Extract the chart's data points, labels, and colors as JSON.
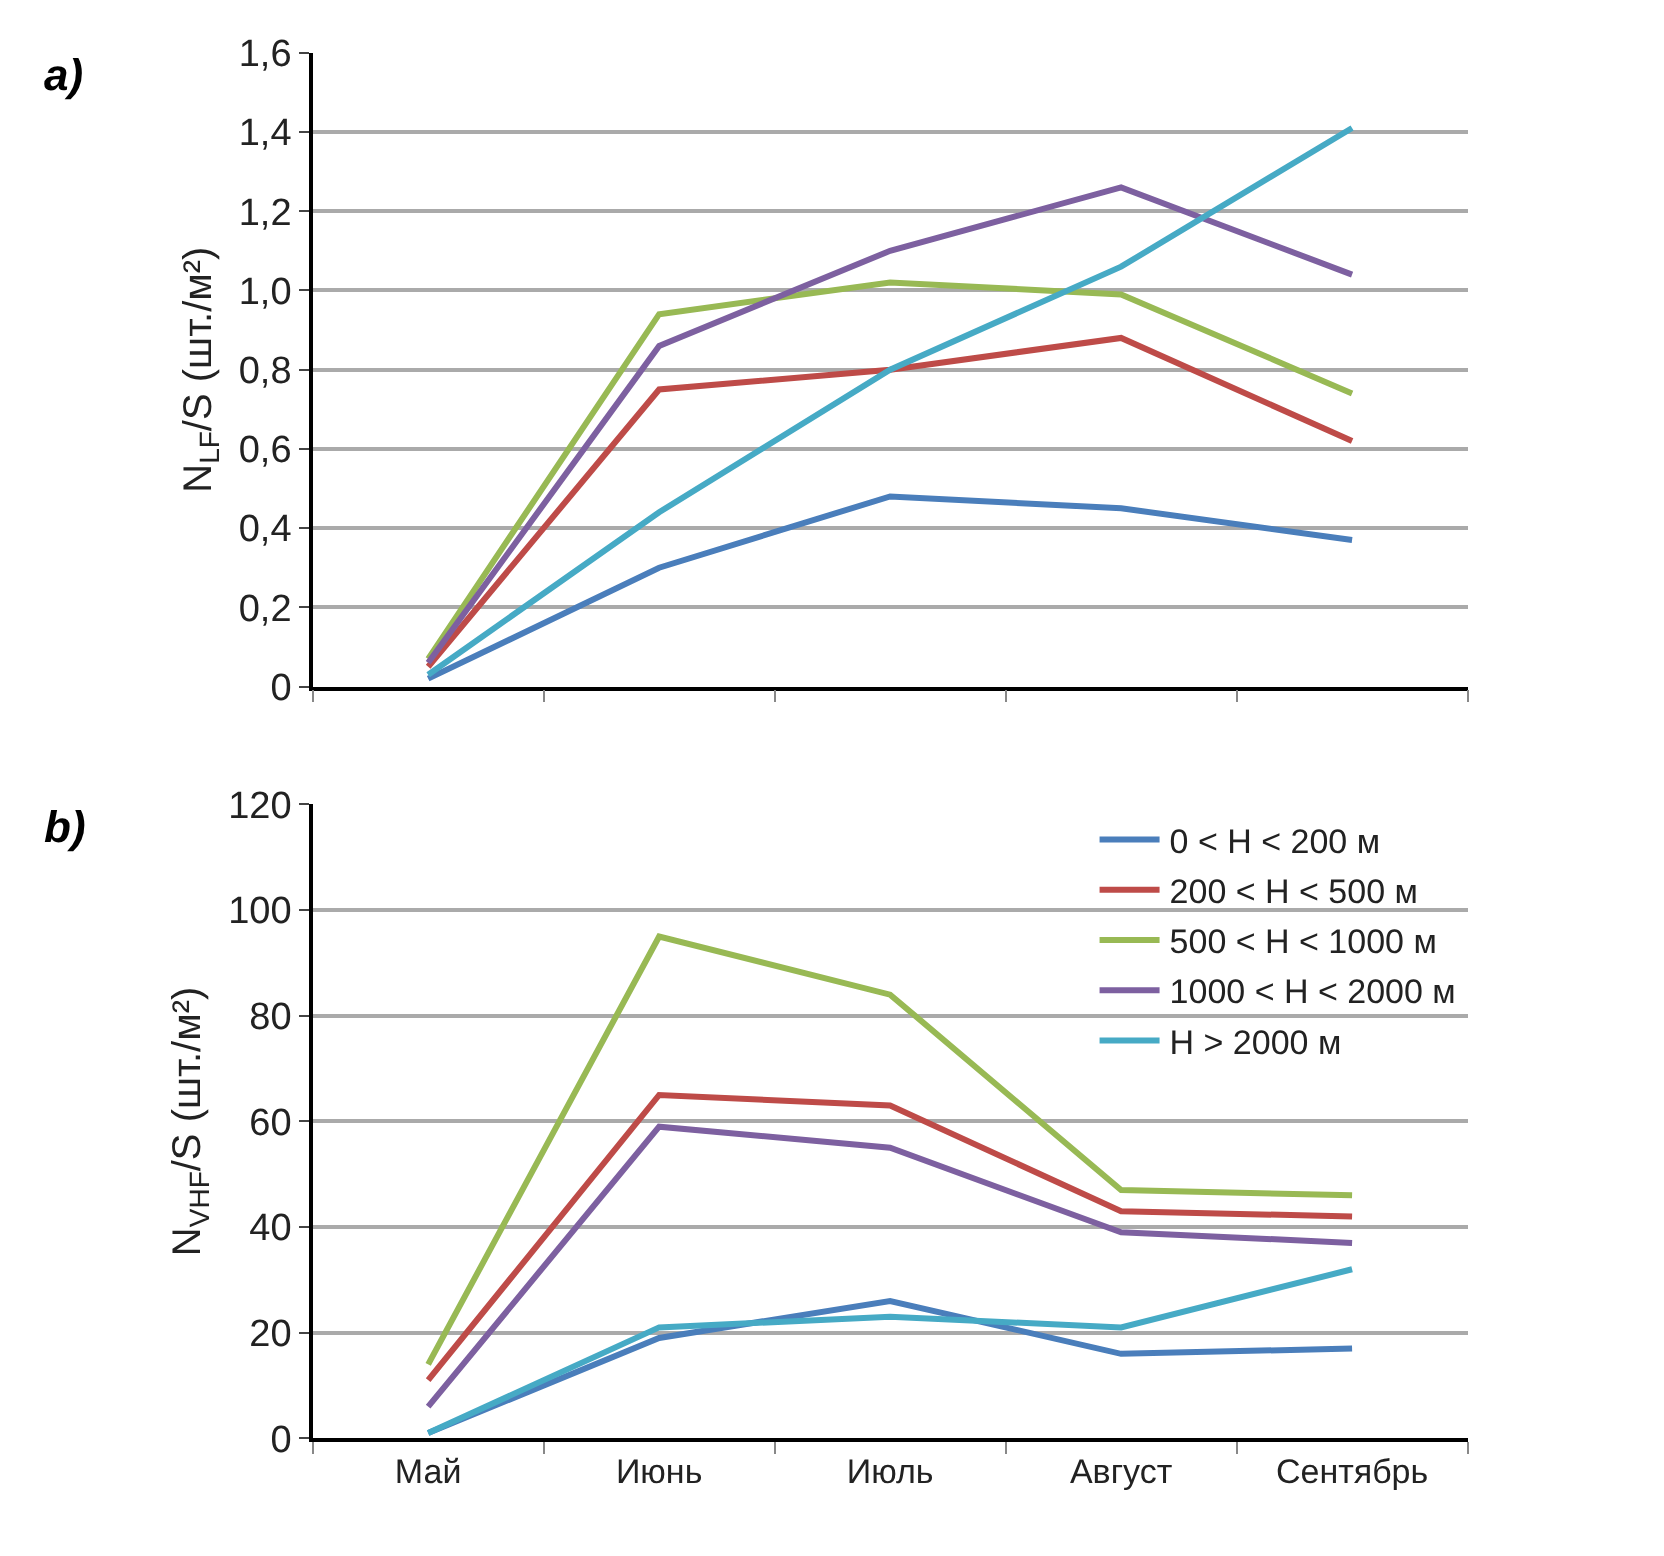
{
  "chart_data": [
    {
      "type": "line",
      "ylabel": "N$_{LF}$/S (шт./м²)",
      "annotations": [
        "a)"
      ],
      "categories": [
        null,
        null,
        null,
        null,
        null
      ],
      "tick_labels": "y",
      "grid": "y",
      "ylim": [
        0,
        1.6
      ],
      "yticks": [
        0,
        {
          "value": 0.2,
          "label": "0,2"
        },
        {
          "value": 0.4,
          "label": "0,4"
        },
        {
          "value": 0.6,
          "label": "0,6"
        },
        {
          "value": 0.8,
          "label": "0,8"
        },
        {
          "value": 1.0,
          "label": "1,0"
        },
        {
          "value": 1.2,
          "label": "1,2"
        },
        {
          "value": 1.4,
          "label": "1,4"
        },
        {
          "value": 1.6,
          "label": "1,6"
        }
      ],
      "series": [
        {
          "color": "#4a7ebb",
          "values": [
            0.02,
            0.3,
            0.48,
            0.45,
            0.37
          ]
        },
        {
          "color": "#be4b48",
          "values": [
            0.05,
            0.75,
            0.8,
            0.88,
            0.62
          ]
        },
        {
          "color": "#98b954",
          "values": [
            0.07,
            0.94,
            1.02,
            0.99,
            0.74
          ]
        },
        {
          "color": "#7d60a0",
          "values": [
            0.06,
            0.86,
            1.1,
            1.26,
            1.04
          ]
        },
        {
          "color": "#46aac5",
          "values": [
            0.03,
            0.44,
            0.8,
            1.06,
            1.41
          ]
        }
      ]
    },
    {
      "type": "line",
      "ylabel": "N$_{VHF}$/S (шт./м²)",
      "annotations": [
        "b)"
      ],
      "categories": [
        "Май",
        "Июнь",
        "Июль",
        "Август",
        "Сентябрь"
      ],
      "grid": "y",
      "legend": "top right",
      "ylim": [
        0,
        120
      ],
      "yticks": [
        0,
        20,
        40,
        60,
        80,
        100,
        120
      ],
      "series": [
        {
          "name": "0 < H < 200 м",
          "color": "#4a7ebb",
          "values": [
            1,
            19,
            26,
            16,
            17
          ]
        },
        {
          "name": "200 < H < 500 м",
          "color": "#be4b48",
          "values": [
            11,
            65,
            63,
            43,
            42
          ]
        },
        {
          "name": "500 < H < 1000 м",
          "color": "#98b954",
          "values": [
            14,
            95,
            84,
            47,
            46
          ]
        },
        {
          "name": "1000 < H < 2000 м",
          "color": "#7d60a0",
          "values": [
            6,
            59,
            55,
            39,
            37
          ]
        },
        {
          "name": "H > 2000 м",
          "color": "#46aac5",
          "values": [
            1,
            21,
            23,
            21,
            32
          ]
        }
      ]
    }
  ]
}
